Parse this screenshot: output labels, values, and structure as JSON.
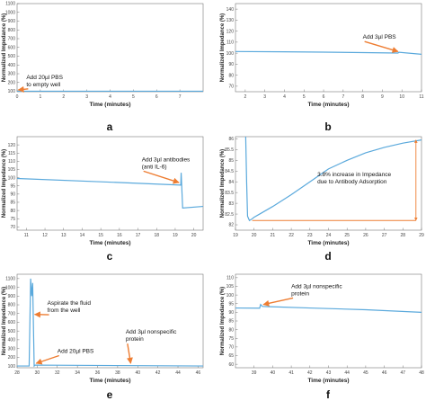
{
  "colors": {
    "series": "#5aa9dc",
    "annotation": "#ee7d32",
    "axis": "#777777"
  },
  "chart_data": [
    {
      "panel": "a",
      "type": "line",
      "xlabel": "Time (minutes)",
      "ylabel": "Normalized Impedance (%)",
      "xlim": [
        0,
        8
      ],
      "ylim": [
        95,
        1100
      ],
      "xticks": [
        0,
        1,
        2,
        3,
        4,
        5,
        6,
        7
      ],
      "yticks": [
        100,
        200,
        300,
        400,
        500,
        600,
        700,
        800,
        900,
        1000,
        1100
      ],
      "series": [
        {
          "x": [
            0,
            8
          ],
          "y": [
            100,
            100
          ]
        }
      ],
      "annotations": [
        {
          "lines": [
            "Add 20µl PBS",
            "to empty well"
          ],
          "tx": 0.4,
          "ty": 240,
          "ax": 0.05,
          "ay": 115
        }
      ]
    },
    {
      "panel": "b",
      "type": "line",
      "xlabel": "Time (minutes)",
      "ylabel": "Normalized Impedance (%)",
      "xlim": [
        1.5,
        11
      ],
      "ylim": [
        65,
        145
      ],
      "xticks": [
        2,
        3,
        4,
        5,
        6,
        7,
        8,
        9,
        10,
        11
      ],
      "yticks": [
        70,
        80,
        90,
        100,
        110,
        120,
        130,
        140
      ],
      "series": [
        {
          "x": [
            1.5,
            4,
            6,
            8,
            9.8,
            9.85,
            11
          ],
          "y": [
            101.5,
            101.2,
            100.9,
            100.5,
            100.1,
            100.8,
            99
          ]
        }
      ],
      "annotations": [
        {
          "lines": [
            "Add 3µl PBS"
          ],
          "tx": 8.0,
          "ty": 113,
          "ax": 9.8,
          "ay": 101.5
        }
      ]
    },
    {
      "panel": "c",
      "type": "line",
      "xlabel": "Time (minutes)",
      "ylabel": "Normalized Impedance (%)",
      "xlim": [
        10.5,
        20.5
      ],
      "ylim": [
        68,
        125
      ],
      "xticks": [
        11,
        12,
        13,
        14,
        15,
        16,
        17,
        18,
        19,
        20
      ],
      "yticks": [
        70,
        75,
        80,
        85,
        90,
        95,
        100,
        105,
        110,
        115,
        120
      ],
      "series": [
        {
          "x": [
            10.5,
            15,
            19.3,
            19.32,
            19.4,
            20.5
          ],
          "y": [
            99.5,
            97.5,
            95.5,
            103,
            81.5,
            82.5
          ]
        }
      ],
      "annotations": [
        {
          "lines": [
            "Add 3µl antibodies",
            "(anti IL-6)"
          ],
          "tx": 17.2,
          "ty": 110,
          "ax": 19.2,
          "ay": 97
        }
      ]
    },
    {
      "panel": "d",
      "type": "line",
      "xlabel": "Time (minutes)",
      "ylabel": "Normalized Impedance (%)",
      "xlim": [
        19,
        29
      ],
      "ylim": [
        81.75,
        86.1
      ],
      "xticks": [
        19,
        20,
        21,
        22,
        23,
        24,
        25,
        26,
        27,
        28,
        29
      ],
      "yticks": [
        82,
        82.5,
        83,
        83.5,
        84,
        84.5,
        85,
        85.5,
        86
      ],
      "series": [
        {
          "x": [
            19.55,
            19.6,
            19.65,
            19.75,
            19.85,
            20,
            20.3,
            21,
            22,
            23,
            24,
            25,
            26,
            27,
            28,
            29
          ],
          "y": [
            86.1,
            84,
            82.4,
            82.2,
            82.25,
            82.35,
            82.5,
            82.85,
            83.4,
            84.0,
            84.6,
            85.0,
            85.35,
            85.6,
            85.8,
            85.95
          ]
        }
      ],
      "reference": {
        "y_low": 82.2,
        "y_high": 85.95,
        "x_start": 19.9,
        "x_arrow": 28.7
      },
      "annotations": [
        {
          "lines": [
            "3.8%  increase  in  Impedance",
            "due to Antibody Adsorption"
          ],
          "tx": 23.4,
          "ty": 84.25,
          "ax": null,
          "ay": null
        }
      ]
    },
    {
      "panel": "e",
      "type": "line",
      "xlabel": "Time (minutes)",
      "ylabel": "Normalized Impedance (%)",
      "xlim": [
        28,
        46.5
      ],
      "ylim": [
        80,
        1150
      ],
      "xticks": [
        28,
        30,
        32,
        34,
        36,
        38,
        40,
        42,
        44,
        46
      ],
      "yticks": [
        100,
        200,
        300,
        400,
        500,
        600,
        700,
        800,
        900,
        1000,
        1100
      ],
      "series": [
        {
          "x": [
            28,
            29.2,
            29.35,
            29.45,
            29.55,
            29.7,
            29.8,
            46.5
          ],
          "y": [
            100,
            100,
            1100,
            900,
            1050,
            100,
            110,
            100
          ]
        }
      ],
      "annotations": [
        {
          "lines": [
            "Aspirate  the  fluid",
            "from the well"
          ],
          "tx": 31.0,
          "ty": 800,
          "ax": 29.75,
          "ay": 690
        },
        {
          "lines": [
            "Add 20µl PBS"
          ],
          "tx": 32.0,
          "ty": 250,
          "ax": 29.9,
          "ay": 130
        },
        {
          "lines": [
            "Add  3µl  nonspecific",
            "protein"
          ],
          "tx": 38.8,
          "ty": 470,
          "ax": 39.3,
          "ay": 130
        }
      ]
    },
    {
      "panel": "f",
      "type": "line",
      "xlabel": "Time (minutes)",
      "ylabel": "Normalized Impedance (%)",
      "xlim": [
        38,
        48
      ],
      "ylim": [
        58,
        112
      ],
      "xticks": [
        39,
        40,
        41,
        42,
        43,
        44,
        45,
        46,
        47,
        48
      ],
      "yticks": [
        60,
        65,
        70,
        75,
        80,
        85,
        90,
        95,
        100,
        105,
        110
      ],
      "series": [
        {
          "x": [
            38,
            39.3,
            39.35,
            39.45,
            39.7,
            42,
            45,
            48
          ],
          "y": [
            92.5,
            92.4,
            94.5,
            93.4,
            93.3,
            92.5,
            91.5,
            90
          ]
        }
      ],
      "annotations": [
        {
          "lines": [
            "Add  3µl  nonspecific",
            "protein"
          ],
          "tx": 41.0,
          "ty": 104,
          "ax": 39.5,
          "ay": 94.5
        }
      ]
    }
  ]
}
